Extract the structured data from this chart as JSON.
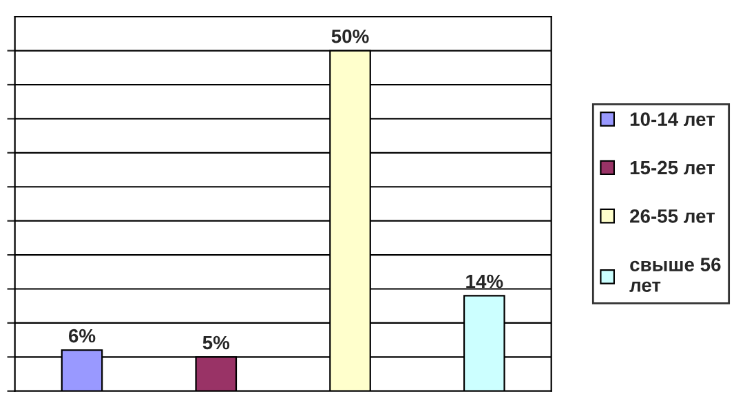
{
  "chart_data": {
    "type": "bar",
    "stacked": true,
    "categories": [
      null,
      null,
      null,
      null
    ],
    "series": [
      {
        "name": "10-14 лет",
        "color": "#9999ff",
        "values": [
          6,
          null,
          null,
          null
        ],
        "value_labels": [
          "6%",
          null,
          null,
          null
        ]
      },
      {
        "name": "15-25 лет",
        "color": "#993366",
        "values": [
          null,
          5,
          null,
          null
        ],
        "value_labels": [
          null,
          "5%",
          null,
          null
        ]
      },
      {
        "name": "26-55 лет",
        "color": "#ffffcc",
        "values": [
          null,
          null,
          50,
          null
        ],
        "value_labels": [
          null,
          null,
          "50%",
          null
        ]
      },
      {
        "name": "свыше 56\nлет",
        "color": "#ccffff",
        "values": [
          null,
          null,
          null,
          14
        ],
        "value_labels": [
          null,
          null,
          null,
          "14%"
        ]
      }
    ],
    "ylim": [
      0,
      55
    ],
    "yticks": [
      {
        "value": 0,
        "label": null
      },
      {
        "value": 5,
        "label": null
      },
      {
        "value": 10,
        "label": null
      },
      {
        "value": 15,
        "label": null
      },
      {
        "value": 20,
        "label": null
      },
      {
        "value": 25,
        "label": null
      },
      {
        "value": 30,
        "label": null
      },
      {
        "value": 35,
        "label": null
      },
      {
        "value": 40,
        "label": null
      },
      {
        "value": 45,
        "label": null
      },
      {
        "value": 50,
        "label": null
      }
    ],
    "grid": "y",
    "legend": "right"
  }
}
